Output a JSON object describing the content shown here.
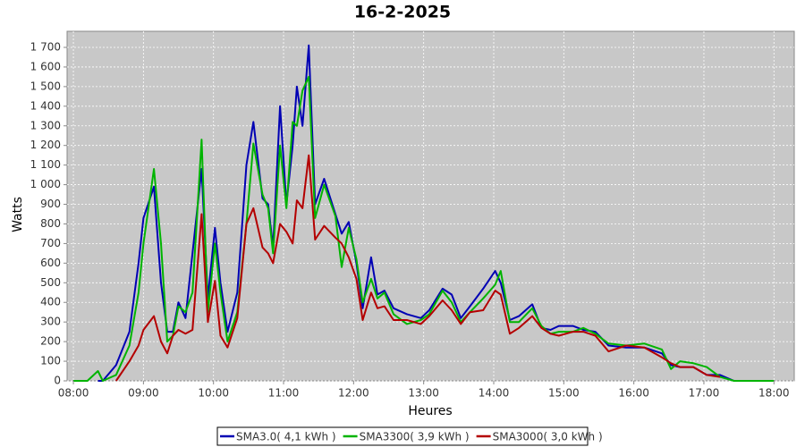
{
  "chart_data": {
    "type": "line",
    "title": "16-2-2025",
    "xlabel": "Heures",
    "ylabel": "Watts",
    "x": [
      8.0,
      8.2,
      8.35,
      8.42,
      8.61,
      8.8,
      8.93,
      9.0,
      9.15,
      9.25,
      9.34,
      9.42,
      9.5,
      9.6,
      9.7,
      9.83,
      9.92,
      10.02,
      10.1,
      10.2,
      10.34,
      10.47,
      10.57,
      10.7,
      10.78,
      10.85,
      10.95,
      11.04,
      11.13,
      11.19,
      11.27,
      11.36,
      11.45,
      11.58,
      11.74,
      11.83,
      11.93,
      12.04,
      12.13,
      12.25,
      12.34,
      12.44,
      12.57,
      12.76,
      12.96,
      13.08,
      13.27,
      13.4,
      13.53,
      13.66,
      13.85,
      14.02,
      14.1,
      14.23,
      14.36,
      14.55,
      14.68,
      14.81,
      14.93,
      15.13,
      15.28,
      15.45,
      15.64,
      15.89,
      16.15,
      16.4,
      16.53,
      16.66,
      16.85,
      17.04,
      17.23,
      17.43,
      17.6,
      18.0
    ],
    "series": [
      {
        "name": "SMA3.0( 4,1 kWh )",
        "color": "#0000b4",
        "values": [
          null,
          null,
          0,
          0,
          80,
          250,
          600,
          830,
          990,
          500,
          250,
          250,
          400,
          320,
          650,
          1080,
          420,
          780,
          500,
          250,
          450,
          1100,
          1320,
          930,
          900,
          680,
          1400,
          900,
          1200,
          1500,
          1300,
          1710,
          900,
          1030,
          850,
          750,
          810,
          600,
          370,
          630,
          440,
          460,
          370,
          340,
          320,
          360,
          470,
          440,
          320,
          380,
          470,
          560,
          500,
          310,
          330,
          390,
          270,
          260,
          280,
          280,
          260,
          250,
          180,
          170,
          170,
          140,
          80,
          70,
          70,
          30,
          30,
          0,
          null,
          null
        ]
      },
      {
        "name": "SMA3300( 3,9 kWh )",
        "color": "#00b400",
        "values": [
          0,
          0,
          50,
          0,
          30,
          180,
          450,
          700,
          1080,
          700,
          200,
          230,
          380,
          350,
          450,
          1230,
          350,
          700,
          450,
          200,
          350,
          800,
          1210,
          950,
          880,
          650,
          1200,
          880,
          1320,
          1300,
          1480,
          1550,
          830,
          1000,
          840,
          580,
          780,
          620,
          400,
          520,
          420,
          450,
          340,
          290,
          310,
          340,
          460,
          400,
          300,
          350,
          420,
          490,
          560,
          300,
          300,
          370,
          280,
          240,
          250,
          250,
          270,
          240,
          190,
          180,
          190,
          160,
          60,
          100,
          90,
          70,
          20,
          0,
          0,
          0
        ]
      },
      {
        "name": "SMA3000( 3,0 kWh )",
        "color": "#b40000",
        "values": [
          null,
          null,
          null,
          null,
          0,
          100,
          180,
          260,
          330,
          200,
          140,
          230,
          260,
          240,
          260,
          850,
          300,
          510,
          230,
          170,
          320,
          800,
          880,
          680,
          650,
          600,
          800,
          760,
          700,
          920,
          880,
          1150,
          720,
          790,
          730,
          700,
          630,
          520,
          310,
          450,
          370,
          380,
          310,
          310,
          290,
          330,
          410,
          360,
          290,
          350,
          360,
          460,
          440,
          240,
          270,
          330,
          270,
          240,
          230,
          250,
          250,
          230,
          150,
          180,
          170,
          120,
          90,
          70,
          70,
          30,
          20,
          null,
          null,
          null
        ]
      }
    ],
    "xlim": [
      7.91,
      18.29
    ],
    "ylim": [
      0,
      1782
    ],
    "xticks": [
      {
        "value": 8,
        "label": "08:00"
      },
      {
        "value": 9,
        "label": "09:00"
      },
      {
        "value": 10,
        "label": "10:00"
      },
      {
        "value": 11,
        "label": "11:00"
      },
      {
        "value": 12,
        "label": "12:00"
      },
      {
        "value": 13,
        "label": "13:00"
      },
      {
        "value": 14,
        "label": "14:00"
      },
      {
        "value": 15,
        "label": "15:00"
      },
      {
        "value": 16,
        "label": "16:00"
      },
      {
        "value": 17,
        "label": "17:00"
      },
      {
        "value": 18,
        "label": "18:00"
      }
    ],
    "yticks": [
      0,
      100,
      200,
      300,
      400,
      500,
      600,
      700,
      800,
      900,
      {
        "value": 1000,
        "label": "1 000"
      },
      {
        "value": 1100,
        "label": "1 100"
      },
      {
        "value": 1200,
        "label": "1 200"
      },
      {
        "value": 1300,
        "label": "1 300"
      },
      {
        "value": 1400,
        "label": "1 400"
      },
      {
        "value": 1500,
        "label": "1 500"
      },
      {
        "value": 1600,
        "label": "1 600"
      },
      {
        "value": 1700,
        "label": "1 700"
      }
    ],
    "grid": true,
    "legend": "bottom"
  }
}
